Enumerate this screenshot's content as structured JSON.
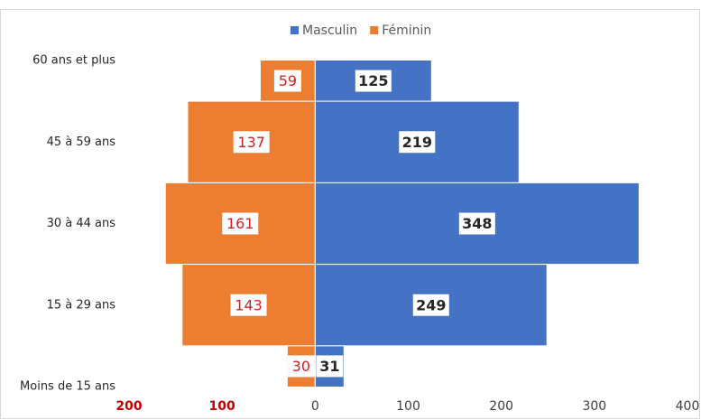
{
  "chart_data": {
    "type": "pyramid",
    "categories": [
      "60 ans et plus",
      "45 à 59 ans",
      "30 à 44 ans",
      "15 à 29 ans",
      "Moins de 15 ans"
    ],
    "series": [
      {
        "name": "Masculin",
        "color": "#4472c4",
        "side": "right",
        "label_color": "#262626",
        "values": [
          125,
          219,
          348,
          249,
          31
        ]
      },
      {
        "name": "Féminin",
        "color": "#ed7d31",
        "side": "left",
        "label_color": "#d42020",
        "values": [
          59,
          137,
          161,
          143,
          30
        ]
      }
    ],
    "xlim": [
      -200,
      400
    ],
    "xticks": [
      {
        "value": -200,
        "label": "200"
      },
      {
        "value": -100,
        "label": "100"
      },
      0,
      100,
      200,
      300,
      400
    ],
    "negative_tick_color": "#c00000",
    "grid": false,
    "legend": "top"
  }
}
